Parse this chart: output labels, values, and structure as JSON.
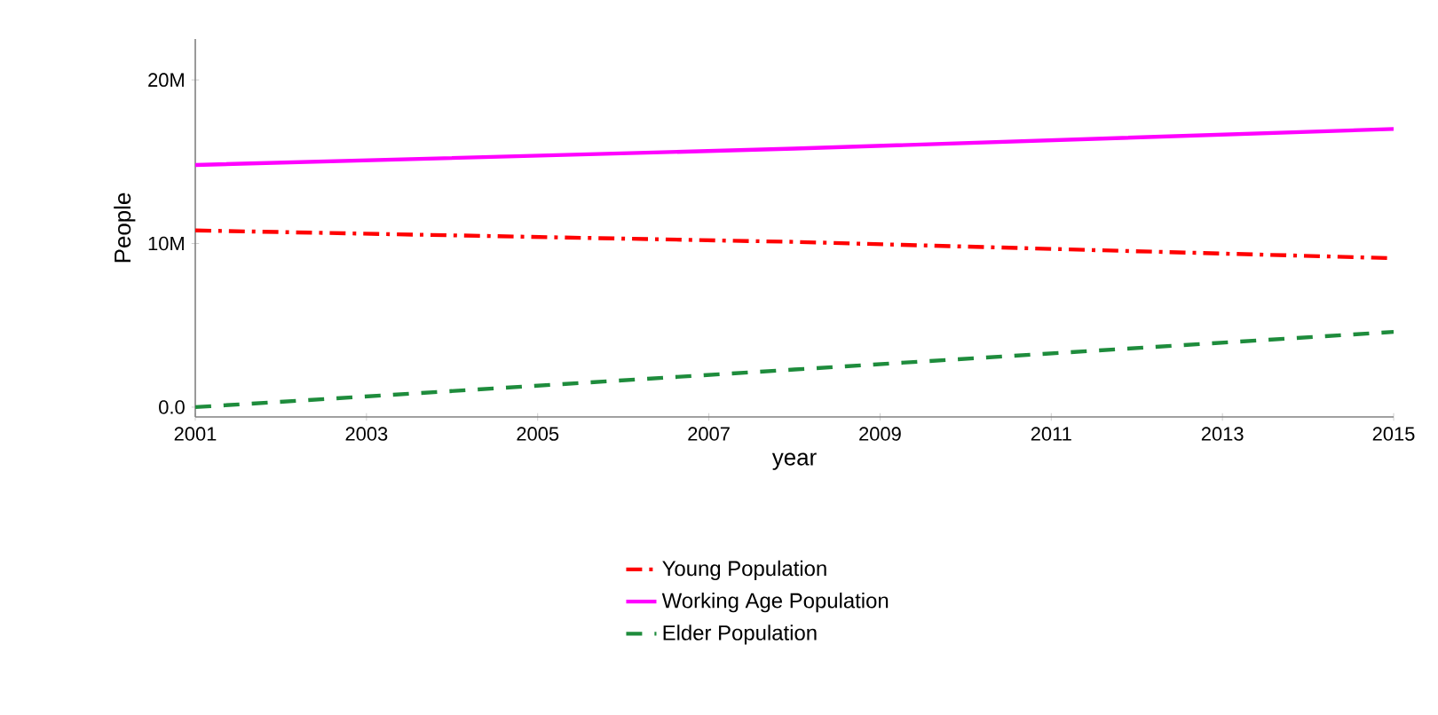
{
  "chart_data": {
    "type": "line",
    "xlabel": "year",
    "ylabel": "People",
    "x": [
      2001,
      2008,
      2015
    ],
    "series": [
      {
        "name": "Young Population",
        "color": "#ff0000",
        "line_style": "dashdot",
        "values": [
          10800000,
          10100000,
          9100000
        ]
      },
      {
        "name": "Working Age Population",
        "color": "#ff00ff",
        "line_style": "solid",
        "values": [
          14800000,
          15800000,
          17000000
        ]
      },
      {
        "name": "Elder Population",
        "color": "#1e8c3c",
        "line_style": "dashed",
        "values": [
          0,
          2300000,
          4600000
        ]
      }
    ],
    "xlim": [
      2001,
      2015
    ],
    "xticks": [
      2001,
      2003,
      2005,
      2007,
      2009,
      2011,
      2013,
      2015
    ],
    "ylim": [
      -600000,
      22500000
    ],
    "yticks": [
      {
        "value": 0,
        "label": "0.0"
      },
      {
        "value": 10000000,
        "label": "10M"
      },
      {
        "value": 20000000,
        "label": "20M"
      }
    ],
    "grid": false,
    "legend": "bottom",
    "marker": "none"
  }
}
